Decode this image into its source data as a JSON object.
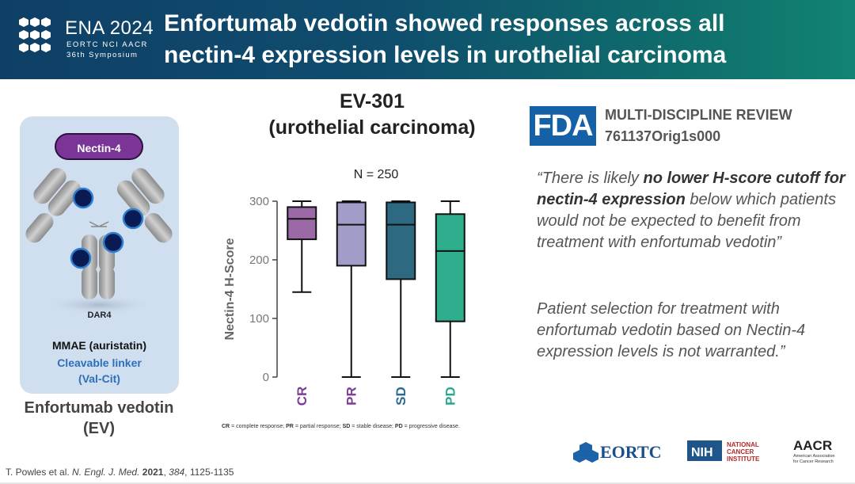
{
  "header": {
    "conf_name": "ENA 2024",
    "conf_orgs": "EORTC NCI AACR",
    "conf_symposium": "36th Symposium",
    "title_line1": "Enfortumab vedotin showed responses across all",
    "title_line2": "nectin-4 expression levels in urothelial carcinoma",
    "bg_color_left": "#0f3f66",
    "bg_color_right": "#128374"
  },
  "left_panel": {
    "target_label": "Nectin-4",
    "dar_label": "DAR4",
    "payload_label": "MMAE (auristatin)",
    "linker_line1": "Cleavable linker",
    "linker_line2": "(Val-Cit)",
    "drug_name_line1": "Enfortumab vedotin",
    "drug_name_line2": "(EV)",
    "card_color": "#cfdff0",
    "pill_color": "#7a3596"
  },
  "trial": {
    "name_line1": "EV-301",
    "name_line2": "(urothelial carcinoma)"
  },
  "chart_data": {
    "type": "boxplot",
    "annotation": "N = 250",
    "ylabel": "Nectin-4 H-Score",
    "ylim": [
      0,
      300
    ],
    "yticks": [
      0,
      100,
      200,
      300
    ],
    "categories": [
      "CR",
      "PR",
      "SD",
      "PD"
    ],
    "colors": [
      "#9b6aa6",
      "#a19cc8",
      "#2d6a82",
      "#2fae8e"
    ],
    "label_colors": [
      "#7d3c98",
      "#7d3c98",
      "#2a6b8f",
      "#2aa88a"
    ],
    "boxes": [
      {
        "category": "CR",
        "min": 145,
        "q1": 235,
        "median": 270,
        "q3": 290,
        "max": 300
      },
      {
        "category": "PR",
        "min": 0,
        "q1": 190,
        "median": 260,
        "q3": 298,
        "max": 300
      },
      {
        "category": "SD",
        "min": 0,
        "q1": 167,
        "median": 260,
        "q3": 298,
        "max": 300
      },
      {
        "category": "PD",
        "min": 0,
        "q1": 95,
        "median": 215,
        "q3": 278,
        "max": 300
      }
    ],
    "grid": false
  },
  "footnote": {
    "cr_abbr": "CR",
    "cr_text": " = complete response; ",
    "pr_abbr": "PR",
    "pr_text": " = partial response; ",
    "sd_abbr": "SD",
    "sd_text": " = stable disease; ",
    "pd_abbr": "PD",
    "pd_text": " = progressive disease."
  },
  "fda": {
    "logo_text": "FDA",
    "review_title": "MULTI-DISCIPLINE REVIEW",
    "review_id": "761137Orig1s000",
    "logo_color": "#1461a8"
  },
  "quote1": {
    "open": "“There is likely ",
    "bold": "no lower H-score cutoff for nectin-4 expression",
    "rest": " below which patients would not be expected to benefit from treatment with enfortumab vedotin”"
  },
  "quote2": {
    "text": "Patient selection for treatment with enfortumab vedotin based on Nectin-4 expression levels is not warranted.”"
  },
  "citation": {
    "authors": "T. Powles et al. ",
    "journal": "N. Engl. J. Med.",
    "year": "2021",
    "volume": "384",
    "pages": ", 1125-1135"
  },
  "logos": {
    "eortc": "EORTC",
    "nih": "NIH",
    "nci_line1": "NATIONAL",
    "nci_line2": "CANCER",
    "nci_line3": "INSTITUTE",
    "aacr": "AACR",
    "aacr_sub1": "American Association",
    "aacr_sub2": "for Cancer Research"
  }
}
